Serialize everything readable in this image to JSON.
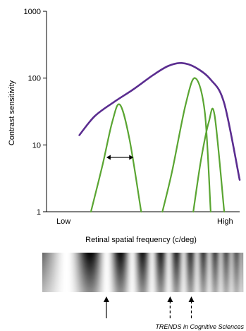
{
  "chart_data": {
    "type": "line",
    "title": "",
    "xlabel": "Retinal spatial frequency (c/deg)",
    "ylabel": "Contrast sensitivity",
    "y_scale": "log",
    "ylim": [
      1,
      1000
    ],
    "y_ticks": [
      "1",
      "10",
      "100",
      "1000"
    ],
    "x_range_labels": {
      "low": "Low",
      "high": "High"
    },
    "grid": false,
    "legend": "none",
    "colors": {
      "envelope": "#5b2d90",
      "channels": "#5aa532",
      "axis": "#000000"
    },
    "envelope_label": "",
    "channel_label": "",
    "series": [
      {
        "role": "envelope",
        "x": [
          0.17,
          0.25,
          0.35,
          0.45,
          0.55,
          0.63,
          0.7,
          0.77,
          0.85,
          0.92,
          1.0
        ],
        "y": [
          14,
          27,
          44,
          68,
          110,
          152,
          168,
          145,
          95,
          42,
          3
        ]
      },
      {
        "role": "channel",
        "x": [
          0.23,
          0.29,
          0.34,
          0.38,
          0.43,
          0.49
        ],
        "y": [
          1,
          5,
          22,
          40,
          12,
          1
        ]
      },
      {
        "role": "channel",
        "x": [
          0.6,
          0.65,
          0.72,
          0.77,
          0.82,
          0.85
        ],
        "y": [
          1,
          4,
          40,
          100,
          30,
          1
        ]
      },
      {
        "role": "channel",
        "x": [
          0.76,
          0.8,
          0.84,
          0.87,
          0.92
        ],
        "y": [
          1,
          6,
          22,
          28,
          1
        ]
      }
    ],
    "annotations": [
      {
        "type": "double-arrow",
        "x_from": 0.31,
        "x_to": 0.45,
        "y": 6.5
      }
    ]
  },
  "grating": {
    "arrows": [
      {
        "style": "solid",
        "x": 0.31
      },
      {
        "style": "dashed",
        "x": 0.64
      },
      {
        "style": "dashed",
        "x": 0.75
      }
    ]
  },
  "credit": "TRENDS in Cognitive Sciences"
}
